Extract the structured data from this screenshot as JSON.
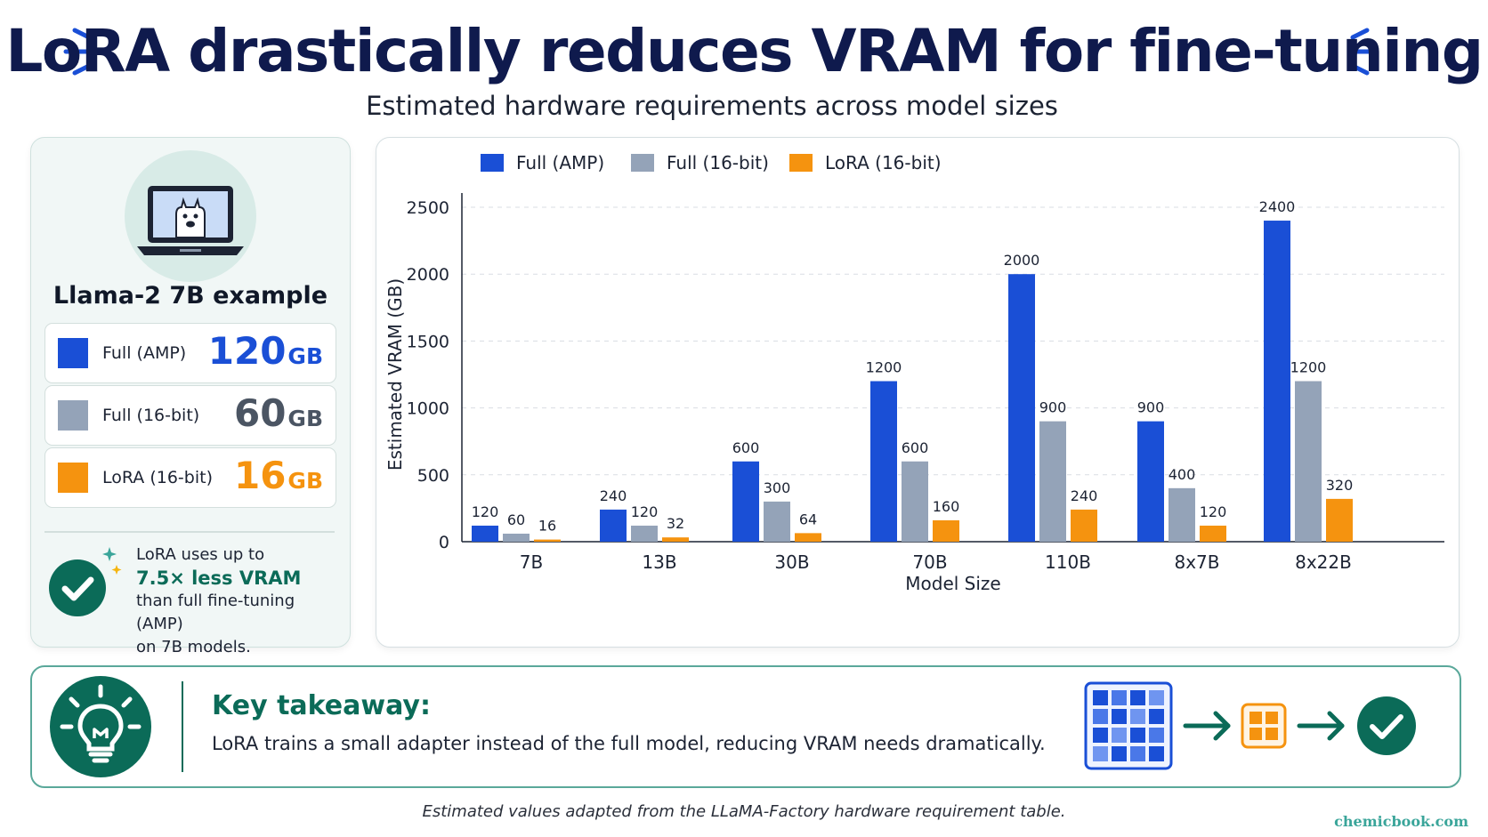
{
  "header": {
    "title": "LoRA drastically reduces VRAM for fine-tuning",
    "subtitle": "Estimated hardware requirements across model sizes"
  },
  "colors": {
    "full_amp": "#1a4fd6",
    "full_16": "#94a3b8",
    "lora_16": "#f5930f",
    "accent_green": "#0b6b58",
    "title_navy": "#0f1a4d"
  },
  "example": {
    "title": "Llama-2 7B example",
    "icon": "laptop-llama-icon",
    "stats": [
      {
        "label": "Full (AMP)",
        "value": "120",
        "unit": "GB"
      },
      {
        "label": "Full (16-bit)",
        "value": "60",
        "unit": "GB"
      },
      {
        "label": "LoRA (16-bit)",
        "value": "16",
        "unit": "GB"
      }
    ],
    "note_line1": "LoRA uses up to",
    "note_highlight": "7.5× less VRAM",
    "note_line2": "than full fine-tuning (AMP)",
    "note_line3": "on 7B models."
  },
  "chart_data": {
    "type": "bar",
    "categories": [
      "7B",
      "13B",
      "30B",
      "70B",
      "110B",
      "8x7B",
      "8x22B"
    ],
    "series": [
      {
        "name": "Full (AMP)",
        "values": [
          120,
          240,
          600,
          1200,
          2000,
          900,
          2400
        ]
      },
      {
        "name": "Full (16-bit)",
        "values": [
          60,
          120,
          300,
          600,
          900,
          400,
          1200
        ]
      },
      {
        "name": "LoRA (16-bit)",
        "values": [
          16,
          32,
          64,
          160,
          240,
          120,
          320
        ]
      }
    ],
    "xlabel": "Model Size",
    "ylabel": "Estimated VRAM (GB)",
    "ylim": [
      0,
      2500
    ],
    "yticks": [
      0,
      500,
      1000,
      1500,
      2000,
      2500
    ],
    "grid": true,
    "legend": "top-left"
  },
  "takeaway": {
    "title": "Key takeaway:",
    "text": "LoRA trains a small adapter instead of the full model, reducing VRAM needs dramatically.",
    "icons": [
      "lightbulb-icon",
      "full-grid-icon",
      "arrow-right-icon",
      "adapter-grid-icon",
      "check-icon"
    ]
  },
  "footnote": "Estimated values adapted from the LLaMA-Factory hardware requirement table.",
  "brand": "chemicbook.com"
}
